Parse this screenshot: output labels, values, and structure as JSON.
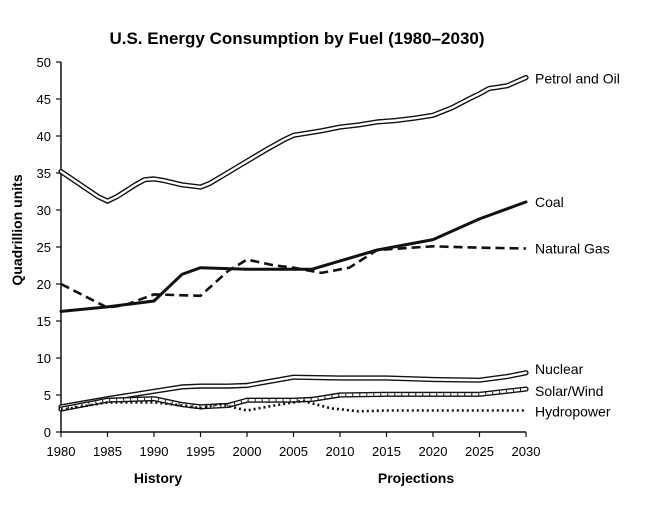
{
  "chart_data": {
    "type": "line",
    "title": "U.S. Energy Consumption by Fuel (1980–2030)",
    "ylabel": "Quadrillion units",
    "xlabel": "",
    "xlim": [
      1980,
      2030
    ],
    "ylim": [
      0,
      50
    ],
    "x_ticks": [
      "1980",
      "1985",
      "1990",
      "1995",
      "2000",
      "2005",
      "2010",
      "2015",
      "2020",
      "2025",
      "2030"
    ],
    "y_ticks": [
      "0",
      "5",
      "10",
      "15",
      "20",
      "25",
      "30",
      "35",
      "40",
      "45",
      "50"
    ],
    "annotations": [
      "History",
      "Projections"
    ],
    "grid": false,
    "series": [
      {
        "name": "Petrol and Oil",
        "style": "double",
        "x": [
          1980,
          1982,
          1984,
          1985,
          1986,
          1988,
          1989,
          1990,
          1991,
          1993,
          1995,
          1996,
          1998,
          2000,
          2002,
          2004,
          2005,
          2006,
          2008,
          2010,
          2012,
          2014,
          2016,
          2018,
          2020,
          2022,
          2024,
          2025,
          2026,
          2027,
          2028,
          2030
        ],
        "values": [
          35.2,
          33.5,
          31.8,
          31.2,
          31.8,
          33.4,
          34.1,
          34.2,
          34.0,
          33.4,
          33.1,
          33.6,
          35.1,
          36.6,
          38.1,
          39.5,
          40.1,
          40.3,
          40.7,
          41.2,
          41.5,
          41.9,
          42.1,
          42.4,
          42.8,
          43.8,
          45.1,
          45.7,
          46.4,
          46.6,
          46.8,
          47.9
        ]
      },
      {
        "name": "Coal",
        "style": "solid-thick",
        "x": [
          1980,
          1985,
          1990,
          1993,
          1995,
          2000,
          2007,
          2014,
          2020,
          2025,
          2030
        ],
        "values": [
          16.3,
          16.9,
          17.7,
          21.3,
          22.2,
          22.0,
          22.0,
          24.6,
          26.0,
          28.8,
          31.1
        ]
      },
      {
        "name": "Natural Gas",
        "style": "dashed",
        "x": [
          1980,
          1985,
          1987,
          1990,
          1995,
          1998,
          2000,
          2003,
          2005,
          2008,
          2011,
          2014,
          2020,
          2025,
          2030
        ],
        "values": [
          20.0,
          16.8,
          17.2,
          18.6,
          18.4,
          21.8,
          23.3,
          22.5,
          22.2,
          21.5,
          22.2,
          24.6,
          25.1,
          24.9,
          24.8
        ]
      },
      {
        "name": "Nuclear",
        "style": "double",
        "x": [
          1980,
          1985,
          1990,
          1993,
          1995,
          1998,
          2000,
          2005,
          2010,
          2015,
          2020,
          2025,
          2028,
          2030
        ],
        "values": [
          3.4,
          4.5,
          5.5,
          6.1,
          6.2,
          6.2,
          6.3,
          7.4,
          7.3,
          7.3,
          7.1,
          7.0,
          7.5,
          8.0
        ]
      },
      {
        "name": "Solar/Wind",
        "style": "hatched",
        "x": [
          1980,
          1985,
          1990,
          1993,
          1995,
          1998,
          2000,
          2005,
          2007,
          2010,
          2015,
          2020,
          2025,
          2030
        ],
        "values": [
          3.1,
          4.3,
          4.5,
          3.7,
          3.4,
          3.6,
          4.3,
          4.3,
          4.4,
          5.0,
          5.1,
          5.1,
          5.1,
          5.8
        ]
      },
      {
        "name": "Hydropower",
        "style": "dotted",
        "x": [
          1980,
          1985,
          1990,
          1993,
          1995,
          1997,
          2000,
          2003,
          2006,
          2009,
          2012,
          2015,
          2020,
          2025,
          2030
        ],
        "values": [
          3.0,
          4.0,
          4.0,
          3.6,
          3.2,
          3.8,
          2.9,
          3.6,
          4.2,
          3.2,
          2.8,
          2.9,
          2.9,
          2.9,
          2.9
        ]
      }
    ]
  }
}
